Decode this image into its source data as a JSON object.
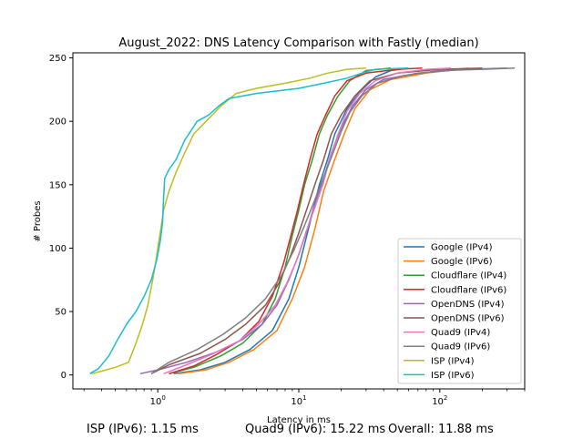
{
  "chart_data": {
    "type": "line",
    "title": "August_2022: DNS Latency Comparison with Fastly (median)",
    "xlabel": "Latency in ms",
    "ylabel": "# Probes",
    "x_scale": "log",
    "xlim": [
      0.25,
      400
    ],
    "ylim": [
      -11,
      254
    ],
    "x_ticks": [
      {
        "value": 1,
        "base": "10",
        "exp": "0"
      },
      {
        "value": 10,
        "base": "10",
        "exp": "1"
      },
      {
        "value": 100,
        "base": "10",
        "exp": "2"
      }
    ],
    "y_ticks": [
      0,
      50,
      100,
      150,
      200,
      250
    ],
    "grid": false,
    "legend_position": "lower right",
    "series": [
      {
        "name": "Google (IPv4)",
        "color": "#1f77b4",
        "points": [
          [
            1.3,
            1
          ],
          [
            2.0,
            4
          ],
          [
            3.0,
            10
          ],
          [
            4.5,
            20
          ],
          [
            6.5,
            35
          ],
          [
            8.5,
            60
          ],
          [
            10,
            85
          ],
          [
            12,
            120
          ],
          [
            14,
            150
          ],
          [
            16,
            170
          ],
          [
            18,
            190
          ],
          [
            22,
            210
          ],
          [
            28,
            225
          ],
          [
            35,
            235
          ],
          [
            45,
            240
          ],
          [
            60,
            242
          ]
        ]
      },
      {
        "name": "Google (IPv6)",
        "color": "#ff7f0e",
        "points": [
          [
            1.4,
            1
          ],
          [
            2.2,
            4
          ],
          [
            3.2,
            10
          ],
          [
            4.8,
            20
          ],
          [
            7.0,
            35
          ],
          [
            9.0,
            60
          ],
          [
            11,
            85
          ],
          [
            13,
            115
          ],
          [
            15,
            145
          ],
          [
            18,
            170
          ],
          [
            21,
            190
          ],
          [
            25,
            210
          ],
          [
            32,
            225
          ],
          [
            45,
            233
          ],
          [
            80,
            238
          ],
          [
            160,
            242
          ]
        ]
      },
      {
        "name": "Cloudflare (IPv4)",
        "color": "#2ca02c",
        "points": [
          [
            1.2,
            1
          ],
          [
            1.8,
            6
          ],
          [
            2.8,
            15
          ],
          [
            4.0,
            25
          ],
          [
            5.5,
            40
          ],
          [
            6.8,
            60
          ],
          [
            8.0,
            85
          ],
          [
            9.0,
            110
          ],
          [
            10,
            130
          ],
          [
            11,
            150
          ],
          [
            12.5,
            170
          ],
          [
            14,
            190
          ],
          [
            16,
            205
          ],
          [
            19,
            220
          ],
          [
            23,
            232
          ],
          [
            30,
            240
          ],
          [
            45,
            242
          ]
        ]
      },
      {
        "name": "Cloudflare (IPv6)",
        "color": "#d62728",
        "points": [
          [
            1.2,
            1
          ],
          [
            1.8,
            7
          ],
          [
            2.6,
            16
          ],
          [
            3.8,
            27
          ],
          [
            5.2,
            42
          ],
          [
            6.5,
            62
          ],
          [
            7.8,
            88
          ],
          [
            8.8,
            110
          ],
          [
            9.8,
            130
          ],
          [
            10.8,
            150
          ],
          [
            12,
            170
          ],
          [
            13.5,
            190
          ],
          [
            15.5,
            205
          ],
          [
            18,
            220
          ],
          [
            22,
            232
          ],
          [
            30,
            238
          ],
          [
            50,
            241
          ],
          [
            75,
            242
          ]
        ]
      },
      {
        "name": "OpenDNS (IPv4)",
        "color": "#9467bd",
        "points": [
          [
            0.75,
            1
          ],
          [
            1.0,
            4
          ],
          [
            1.6,
            10
          ],
          [
            2.6,
            18
          ],
          [
            4.0,
            28
          ],
          [
            5.5,
            40
          ],
          [
            7.0,
            55
          ],
          [
            8.5,
            75
          ],
          [
            10,
            95
          ],
          [
            11.5,
            115
          ],
          [
            13,
            135
          ],
          [
            15,
            155
          ],
          [
            17,
            175
          ],
          [
            20,
            195
          ],
          [
            24,
            212
          ],
          [
            30,
            225
          ],
          [
            40,
            233
          ],
          [
            70,
            238
          ],
          [
            150,
            241
          ],
          [
            300,
            242
          ]
        ]
      },
      {
        "name": "OpenDNS (IPv6)",
        "color": "#8c564b",
        "points": [
          [
            0.9,
            1
          ],
          [
            1.2,
            8
          ],
          [
            2.0,
            17
          ],
          [
            3.0,
            28
          ],
          [
            4.2,
            40
          ],
          [
            5.8,
            55
          ],
          [
            7.2,
            72
          ],
          [
            8.6,
            92
          ],
          [
            10,
            112
          ],
          [
            11.5,
            132
          ],
          [
            13,
            150
          ],
          [
            15,
            170
          ],
          [
            17,
            190
          ],
          [
            20,
            205
          ],
          [
            25,
            220
          ],
          [
            32,
            232
          ],
          [
            50,
            238
          ],
          [
            100,
            241
          ],
          [
            200,
            242
          ]
        ]
      },
      {
        "name": "Quad9 (IPv4)",
        "color": "#e377c2",
        "points": [
          [
            1.1,
            1
          ],
          [
            1.6,
            8
          ],
          [
            2.5,
            17
          ],
          [
            3.8,
            27
          ],
          [
            5.2,
            40
          ],
          [
            6.8,
            55
          ],
          [
            8.2,
            72
          ],
          [
            9.8,
            92
          ],
          [
            11.2,
            112
          ],
          [
            13,
            132
          ],
          [
            14.8,
            150
          ],
          [
            16.5,
            170
          ],
          [
            19,
            190
          ],
          [
            22,
            208
          ],
          [
            27,
            222
          ],
          [
            35,
            232
          ],
          [
            50,
            238
          ],
          [
            80,
            241
          ],
          [
            120,
            242
          ]
        ]
      },
      {
        "name": "Quad9 (IPv6)",
        "color": "#7f7f7f",
        "points": [
          [
            0.9,
            1
          ],
          [
            1.2,
            10
          ],
          [
            1.9,
            20
          ],
          [
            2.9,
            32
          ],
          [
            4.2,
            45
          ],
          [
            5.8,
            60
          ],
          [
            7.5,
            78
          ],
          [
            9.2,
            98
          ],
          [
            11,
            118
          ],
          [
            13,
            138
          ],
          [
            15,
            156
          ],
          [
            17.5,
            175
          ],
          [
            20,
            192
          ],
          [
            23,
            207
          ],
          [
            28,
            220
          ],
          [
            36,
            230
          ],
          [
            55,
            236
          ],
          [
            100,
            240
          ],
          [
            200,
            241
          ],
          [
            340,
            242
          ]
        ]
      },
      {
        "name": "ISP (IPv4)",
        "color": "#bcbd22",
        "points": [
          [
            0.34,
            1
          ],
          [
            0.4,
            3
          ],
          [
            0.5,
            6
          ],
          [
            0.62,
            10
          ],
          [
            0.7,
            25
          ],
          [
            0.78,
            40
          ],
          [
            0.85,
            55
          ],
          [
            0.92,
            75
          ],
          [
            0.97,
            90
          ],
          [
            1.0,
            100
          ],
          [
            1.05,
            115
          ],
          [
            1.1,
            130
          ],
          [
            1.2,
            145
          ],
          [
            1.35,
            160
          ],
          [
            1.55,
            175
          ],
          [
            1.8,
            190
          ],
          [
            2.2,
            200
          ],
          [
            2.8,
            212
          ],
          [
            3.6,
            222
          ],
          [
            5,
            226
          ],
          [
            8,
            230
          ],
          [
            12,
            234
          ],
          [
            16,
            238
          ],
          [
            22,
            241
          ],
          [
            30,
            242
          ]
        ]
      },
      {
        "name": "ISP (IPv6)",
        "color": "#17becf",
        "points": [
          [
            0.33,
            1
          ],
          [
            0.38,
            5
          ],
          [
            0.45,
            15
          ],
          [
            0.52,
            28
          ],
          [
            0.6,
            40
          ],
          [
            0.7,
            50
          ],
          [
            0.8,
            62
          ],
          [
            0.9,
            75
          ],
          [
            0.98,
            90
          ],
          [
            1.04,
            105
          ],
          [
            1.08,
            120
          ],
          [
            1.1,
            140
          ],
          [
            1.12,
            155
          ],
          [
            1.2,
            162
          ],
          [
            1.35,
            170
          ],
          [
            1.55,
            185
          ],
          [
            1.9,
            200
          ],
          [
            2.3,
            205
          ],
          [
            2.7,
            212
          ],
          [
            3.2,
            218
          ],
          [
            5,
            222
          ],
          [
            10,
            226
          ],
          [
            15,
            230
          ],
          [
            22,
            234
          ],
          [
            28,
            238
          ],
          [
            35,
            241
          ],
          [
            60,
            242
          ]
        ]
      }
    ],
    "annotations": [
      "ISP (IPv6): 1.15 ms",
      "Quad9 (IPv6): 15.22 ms",
      "Overall: 11.88 ms"
    ]
  }
}
